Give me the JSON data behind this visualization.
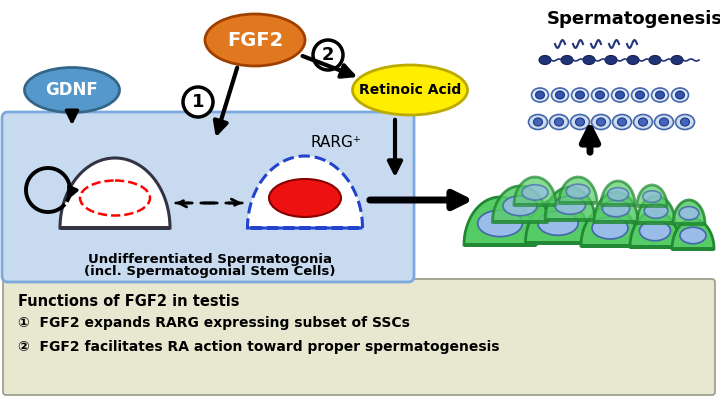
{
  "bg_color": "#ffffff",
  "bottom_box_color": "#e8e8d0",
  "blue_box_color": "#c8daf0",
  "blue_box_border": "#7aaadd",
  "gdnf_color": "#5599cc",
  "gdnf_border": "#336688",
  "fgf2_color": "#e07820",
  "fgf2_border": "#a04000",
  "retinoic_color": "#ffee00",
  "retinoic_border": "#bbaa00",
  "functions_title": "Functions of FGF2 in testis",
  "function1": "①  FGF2 expands RARG expressing subset of SSCs",
  "function2": "②  FGF2 facilitates RA action toward proper spermatogenesis",
  "spermatogonia_label1": "Undifferentiated Spermatogonia",
  "spermatogonia_label2": "(incl. Spermatogonial Stem Cells)",
  "spermatogenesis_label": "Spermatogenesis",
  "rarg_label": "RARG⁺",
  "gdnf_label": "GDNF",
  "fgf2_label": "FGF2",
  "retinoic_label": "Retinoic Acid"
}
